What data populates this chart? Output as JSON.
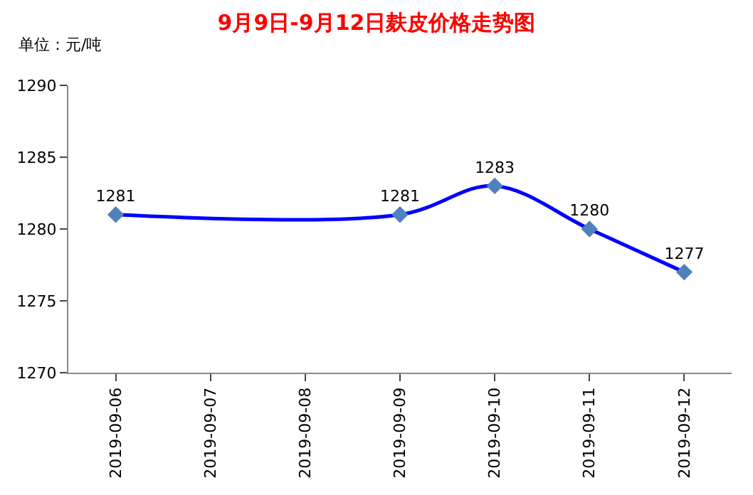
{
  "chart_data": {
    "type": "line",
    "title": "9月9日-9月12日麸皮价格走势图",
    "ylabel": "单位：元/吨",
    "categories": [
      "2019-09-06",
      "2019-09-07",
      "2019-09-08",
      "2019-09-09",
      "2019-09-10",
      "2019-09-11",
      "2019-09-12"
    ],
    "series": [
      {
        "color": "#0000ff",
        "values": [
          1281,
          null,
          null,
          1281,
          1283,
          1280,
          1277
        ]
      }
    ],
    "ylim": [
      1270,
      1290
    ],
    "yticks": [
      1270,
      1275,
      1280,
      1285,
      1290
    ],
    "grid": false,
    "legend": false,
    "marker": "diamond",
    "line_style": "solid",
    "data_labels": true
  }
}
